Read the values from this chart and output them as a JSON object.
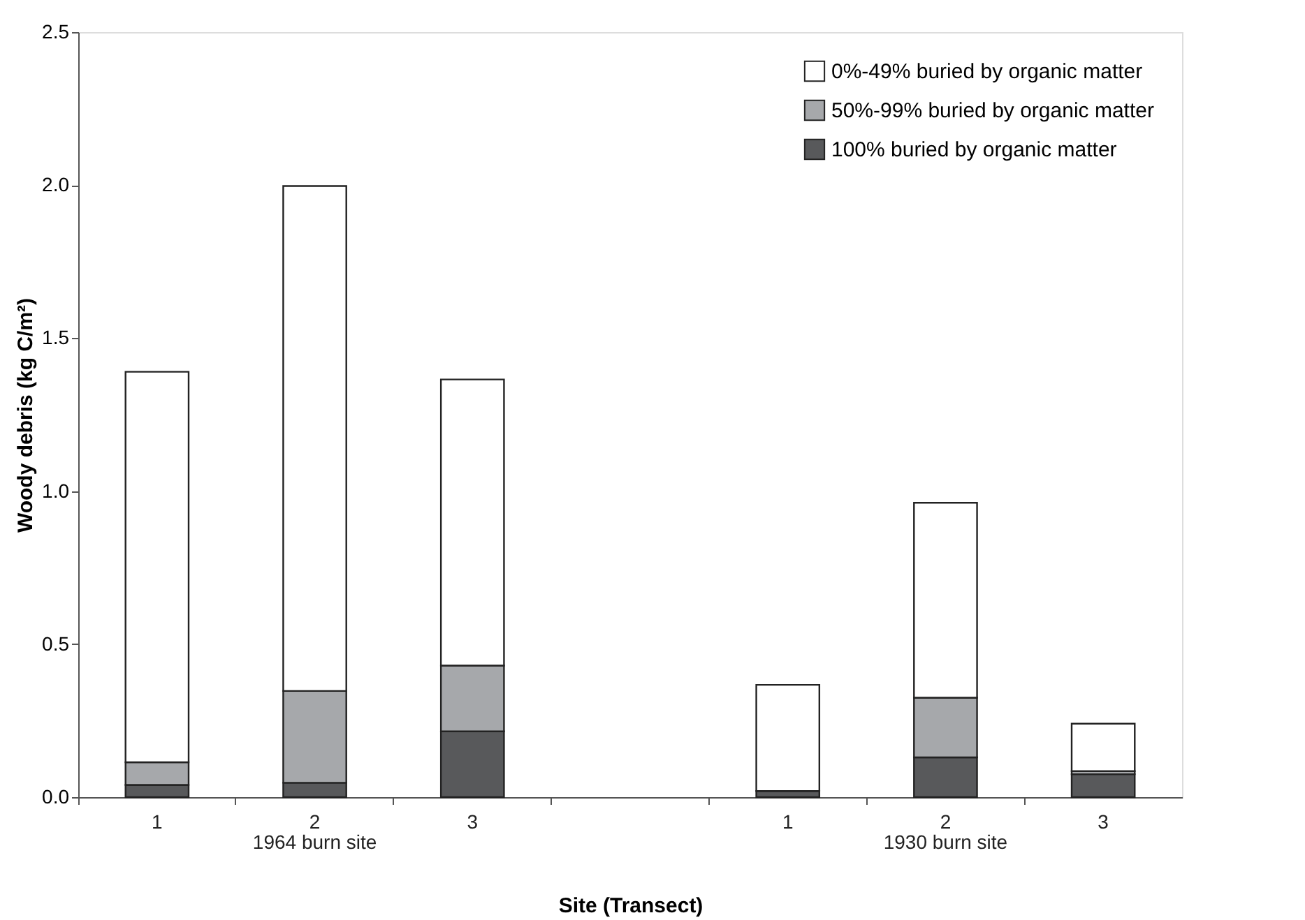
{
  "chart_data": {
    "type": "bar",
    "stacked": true,
    "xlabel": "Site (Transect)",
    "ylabel": "Woody debris (kg C/m²)",
    "categories": [
      "1",
      "2",
      "3",
      null,
      "1",
      "2",
      "3"
    ],
    "series": [
      {
        "name": "100% buried by organic matter",
        "color": "#58595b",
        "values": [
          0.04,
          0.047,
          0.215,
          null,
          0.02,
          0.13,
          0.075
        ]
      },
      {
        "name": "50%-99% buried by organic matter",
        "color": "#a6a8ab",
        "values": [
          0.074,
          0.3,
          0.215,
          null,
          null,
          0.195,
          0.01
        ]
      },
      {
        "name": "0%-49% buried by organic matter",
        "color": "#ffffff",
        "values": [
          1.276,
          1.65,
          0.935,
          null,
          0.347,
          0.637,
          0.155
        ]
      }
    ],
    "annotations": [
      "1964 burn site",
      "1930 burn site"
    ],
    "ylim": [
      0,
      2.5
    ],
    "yticks": [
      {
        "value": 0,
        "label": "0.0"
      },
      {
        "value": 0.5,
        "label": "0.5"
      },
      {
        "value": 1,
        "label": "1.0"
      },
      {
        "value": 1.5,
        "label": "1.5"
      },
      {
        "value": 2,
        "label": "2.0"
      },
      {
        "value": 2.5,
        "label": "2.5"
      }
    ],
    "grid": false,
    "legend": "top right"
  }
}
